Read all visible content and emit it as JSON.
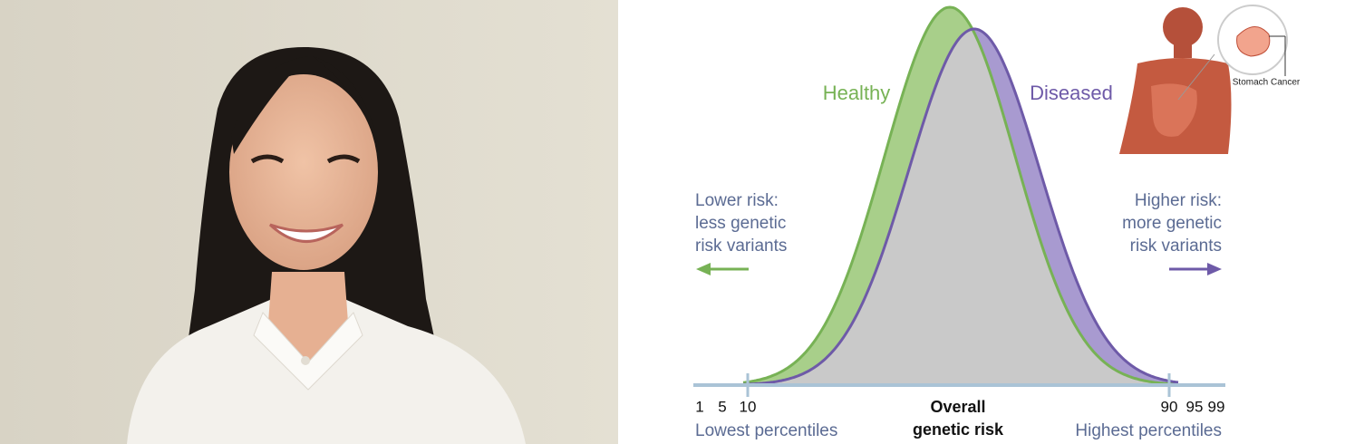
{
  "diagram": {
    "labels": {
      "healthy": "Healthy",
      "diseased": "Diseased"
    },
    "left_note": [
      "Lower risk:",
      "less genetic",
      "risk variants"
    ],
    "right_note": [
      "Higher risk:",
      "more genetic",
      "risk variants"
    ],
    "axis": {
      "title": [
        "Overall",
        "genetic risk"
      ],
      "ticks": [
        "1",
        "5",
        "10",
        "90",
        "95",
        "99"
      ],
      "left_label": "Lowest percentiles",
      "right_label": "Highest percentiles"
    },
    "inset_label": "Stomach Cancer"
  }
}
